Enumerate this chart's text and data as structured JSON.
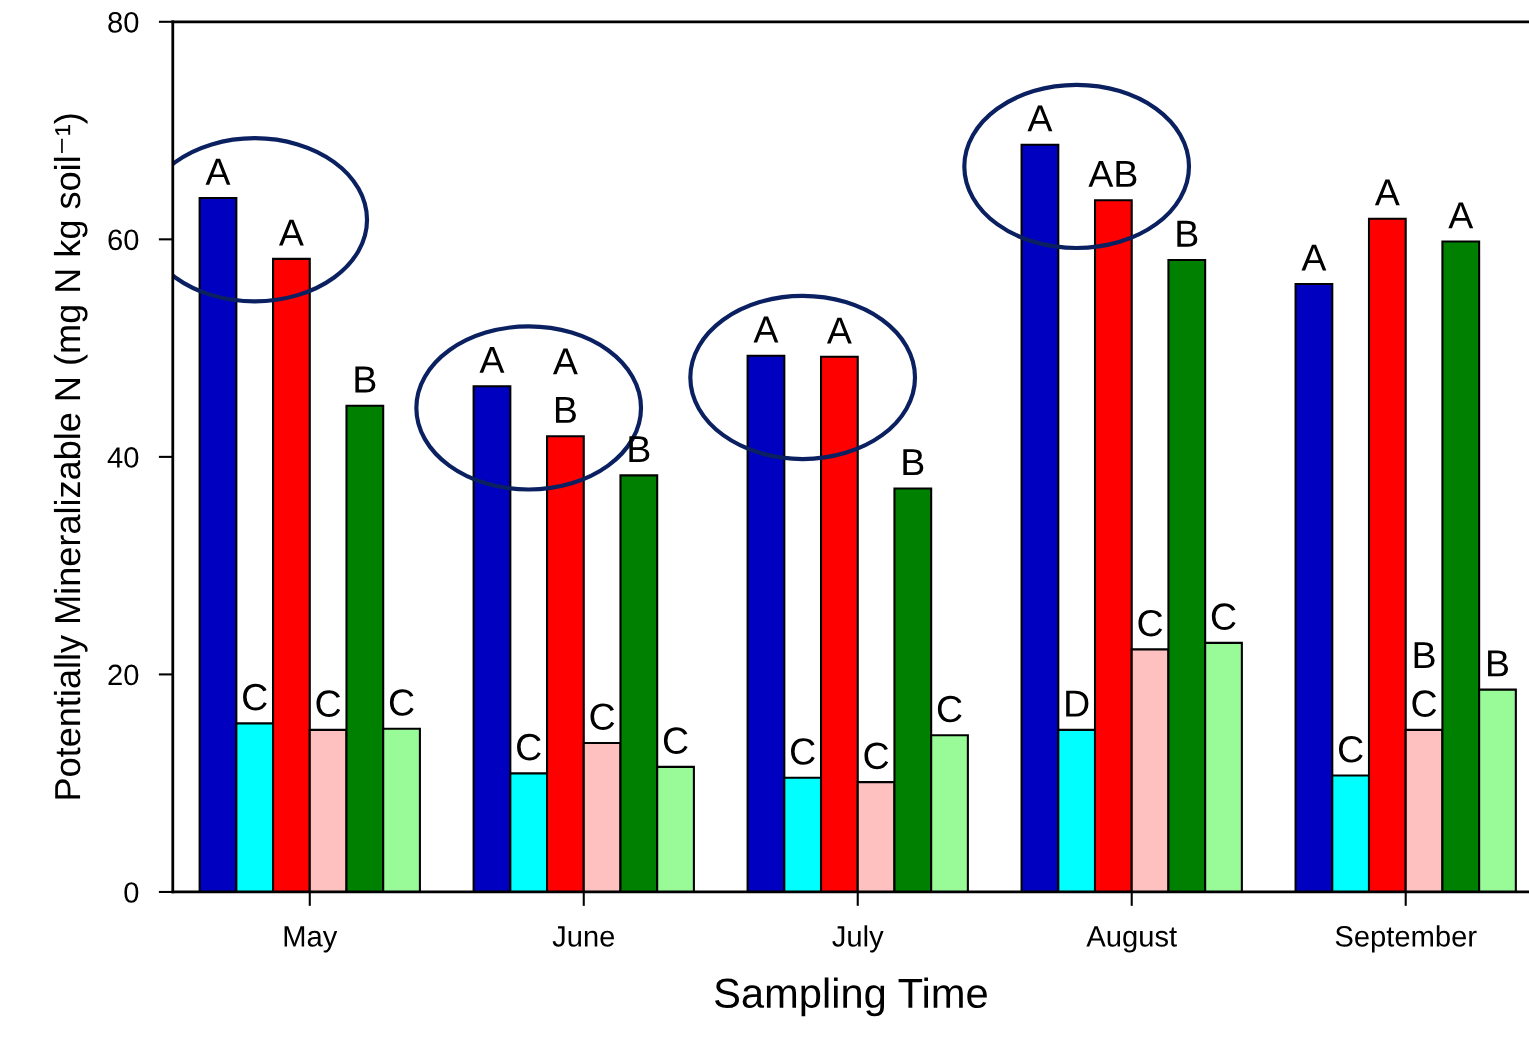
{
  "chart_data": {
    "type": "bar",
    "xlabel": "Sampling Time",
    "ylabel": "Potentially Mineralizable N (mg N kg soil⁻¹)",
    "categories": [
      "May",
      "June",
      "July",
      "August",
      "September"
    ],
    "series": [
      {
        "color": "#0000c0",
        "values": [
          63.8,
          46.5,
          49.3,
          68.7,
          55.9
        ],
        "value_labels": [
          "A",
          "A",
          "A",
          "A",
          "A"
        ]
      },
      {
        "color": "#00ffff",
        "values": [
          15.5,
          10.9,
          10.5,
          14.9,
          10.7
        ],
        "value_labels": [
          "C",
          "C",
          "C",
          "D",
          "C"
        ]
      },
      {
        "color": "#ff0000",
        "values": [
          58.2,
          41.9,
          49.2,
          63.6,
          61.9
        ],
        "value_labels": [
          "A",
          "A\nB",
          "A",
          "AB",
          "A"
        ]
      },
      {
        "color": "#ffc0c0",
        "values": [
          14.9,
          13.7,
          10.1,
          22.3,
          14.9
        ],
        "value_labels": [
          "C",
          "C",
          "C",
          "C",
          "B\nC"
        ]
      },
      {
        "color": "#008000",
        "values": [
          44.7,
          38.3,
          37.1,
          58.1,
          59.8
        ],
        "value_labels": [
          "B",
          "B",
          "B",
          "B",
          "A"
        ]
      },
      {
        "color": "#98fb98",
        "values": [
          15.0,
          11.5,
          14.4,
          22.9,
          18.6
        ],
        "value_labels": [
          "C",
          "C",
          "C",
          "C",
          "B"
        ]
      }
    ],
    "ylim": [
      0,
      80
    ],
    "yticks": [
      0,
      20,
      40,
      60,
      80
    ],
    "grid": false,
    "legend": false
  }
}
